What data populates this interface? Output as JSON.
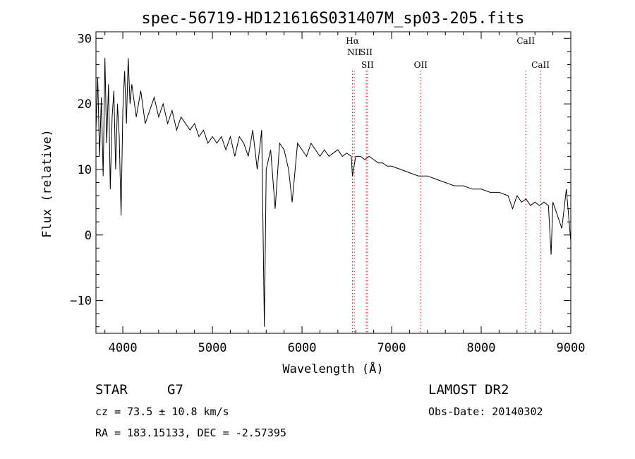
{
  "chart_data": {
    "type": "line",
    "title": "spec-56719-HD121616S031407M_sp03-205.fits",
    "xlabel": "Wavelength (Å)",
    "ylabel": "Flux (relative)",
    "xlim": [
      3700,
      9000
    ],
    "ylim": [
      -15,
      31
    ],
    "xticks": [
      4000,
      5000,
      6000,
      7000,
      8000,
      9000
    ],
    "yticks": [
      -10,
      0,
      10,
      20,
      30
    ],
    "grid": false,
    "line_color": "#000000",
    "marker_color": "#ff0000",
    "series": [
      {
        "x": [
          3700,
          3720,
          3740,
          3760,
          3780,
          3800,
          3820,
          3840,
          3860,
          3880,
          3900,
          3920,
          3940,
          3960,
          3980,
          4000,
          4020,
          4040,
          4060,
          4080,
          4100,
          4150,
          4200,
          4250,
          4300,
          4350,
          4400,
          4450,
          4500,
          4550,
          4600,
          4650,
          4700,
          4750,
          4800,
          4850,
          4900,
          4950,
          5000,
          5050,
          5100,
          5150,
          5200,
          5250,
          5300,
          5350,
          5400,
          5450,
          5500,
          5550,
          5580,
          5600,
          5650,
          5700,
          5750,
          5800,
          5850,
          5890,
          5950,
          6000,
          6050,
          6100,
          6150,
          6200,
          6250,
          6300,
          6350,
          6400,
          6450,
          6500,
          6550,
          6563,
          6600,
          6650,
          6700,
          6750,
          6800,
          6850,
          6900,
          6950,
          7000,
          7100,
          7200,
          7300,
          7400,
          7500,
          7600,
          7700,
          7800,
          7900,
          8000,
          8100,
          8200,
          8300,
          8350,
          8400,
          8450,
          8500,
          8550,
          8600,
          8650,
          8700,
          8750,
          8780,
          8800,
          8850,
          8900,
          8950,
          9000
        ],
        "y": [
          16,
          24,
          12,
          21,
          9,
          27,
          14,
          23,
          7,
          18,
          22,
          10,
          20,
          15,
          3,
          19,
          25,
          17,
          27,
          20,
          23,
          18,
          22,
          17,
          19,
          21,
          18,
          20,
          17,
          19,
          16,
          18,
          17,
          16,
          17,
          15,
          16,
          14,
          15,
          14,
          15,
          13,
          15,
          12,
          15,
          14,
          12,
          16,
          10,
          16,
          -14,
          10,
          13,
          4,
          14,
          13,
          10,
          5,
          14,
          13,
          12,
          14,
          13,
          12,
          13,
          12,
          12.5,
          13,
          12,
          12.5,
          12,
          9,
          12,
          12,
          11.5,
          12,
          11.5,
          11,
          11,
          10.5,
          10.5,
          10,
          9.5,
          9,
          9,
          8.5,
          8,
          7.5,
          7.5,
          7,
          7,
          6.5,
          6.5,
          6,
          4,
          6,
          5,
          5.5,
          4.5,
          5,
          4.5,
          5,
          4.5,
          -3,
          5,
          3,
          1,
          7,
          -1
        ]
      }
    ],
    "line_markers": [
      {
        "label": "Hα",
        "x": 6563
      },
      {
        "label": "NII",
        "x": 6583
      },
      {
        "label": "SII",
        "x": 6717
      },
      {
        "label": "SII",
        "x": 6731
      },
      {
        "label": "OII",
        "x": 7325
      },
      {
        "label": "CaII",
        "x": 8498
      },
      {
        "label": "CaII",
        "x": 8662
      }
    ]
  },
  "info": {
    "object_class": "STAR",
    "subclass": "G7",
    "survey": "LAMOST DR2",
    "redshift": "cz = 73.5 ± 10.8 km/s",
    "obs_date": "Obs-Date: 20140302",
    "coords": "RA = 183.15133, DEC =  -2.57395"
  }
}
